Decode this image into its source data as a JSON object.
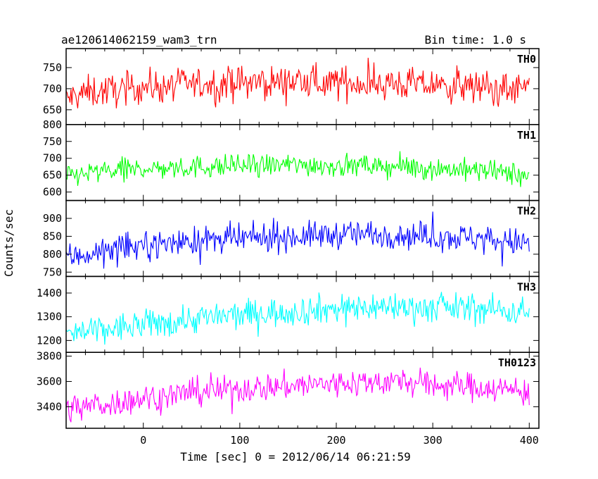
{
  "header": {
    "title": "ae120614062159_wam3_trn",
    "bin_time": "Bin time: 1.0 s"
  },
  "chart_data": {
    "type": "line",
    "title": "ae120614062159_wam3_trn",
    "xlabel": "Time [sec] 0 = 2012/06/14 06:21:59",
    "ylabel": "Counts/sec",
    "xlim": [
      -80,
      410
    ],
    "xticks": [
      0,
      100,
      200,
      300,
      400
    ],
    "series_color_notes": "stacked panels share x axis",
    "panels": [
      {
        "name": "TH0",
        "color": "#ff0000",
        "ylim": [
          615,
          795
        ],
        "yticks": [
          650,
          700,
          750
        ],
        "x": [
          -80,
          -60,
          -40,
          -20,
          0,
          20,
          40,
          60,
          80,
          100,
          120,
          140,
          160,
          180,
          200,
          220,
          240,
          260,
          280,
          300,
          320,
          340,
          360,
          380,
          400
        ],
        "y": [
          675,
          690,
          695,
          698,
          705,
          705,
          710,
          712,
          712,
          715,
          714,
          716,
          716,
          715,
          714,
          714,
          712,
          712,
          710,
          708,
          705,
          704,
          700,
          698,
          700
        ],
        "noise": 28
      },
      {
        "name": "TH1",
        "color": "#00ff00",
        "ylim": [
          575,
          800
        ],
        "yticks": [
          600,
          650,
          700,
          750,
          800
        ],
        "x": [
          -80,
          -60,
          -40,
          -20,
          0,
          20,
          40,
          60,
          80,
          100,
          120,
          140,
          160,
          180,
          200,
          220,
          240,
          260,
          280,
          300,
          320,
          340,
          360,
          380,
          400
        ],
        "y": [
          648,
          655,
          660,
          665,
          670,
          670,
          672,
          675,
          675,
          678,
          678,
          680,
          680,
          680,
          678,
          678,
          676,
          675,
          672,
          670,
          668,
          665,
          660,
          655,
          650
        ],
        "noise": 24
      },
      {
        "name": "TH2",
        "color": "#0000ff",
        "ylim": [
          738,
          950
        ],
        "yticks": [
          750,
          800,
          850,
          900
        ],
        "x": [
          -80,
          -60,
          -40,
          -20,
          0,
          20,
          40,
          60,
          80,
          100,
          120,
          140,
          160,
          180,
          200,
          220,
          240,
          260,
          280,
          300,
          320,
          340,
          360,
          380,
          400
        ],
        "y": [
          790,
          800,
          808,
          815,
          825,
          830,
          835,
          838,
          840,
          842,
          845,
          848,
          850,
          852,
          855,
          856,
          857,
          856,
          852,
          850,
          848,
          846,
          842,
          835,
          830
        ],
        "noise": 28
      },
      {
        "name": "TH3",
        "color": "#00ffff",
        "ylim": [
          1150,
          1470
        ],
        "yticks": [
          1200,
          1300,
          1400
        ],
        "x": [
          -80,
          -60,
          -40,
          -20,
          0,
          20,
          40,
          60,
          80,
          100,
          120,
          140,
          160,
          180,
          200,
          220,
          240,
          260,
          280,
          300,
          320,
          340,
          360,
          380,
          400
        ],
        "y": [
          1225,
          1235,
          1245,
          1255,
          1265,
          1275,
          1285,
          1295,
          1300,
          1308,
          1315,
          1320,
          1325,
          1330,
          1335,
          1340,
          1342,
          1342,
          1340,
          1338,
          1338,
          1336,
          1332,
          1325,
          1320
        ],
        "noise": 45
      },
      {
        "name": "TH0123",
        "color": "#ff00ff",
        "ylim": [
          3230,
          3830
        ],
        "yticks": [
          3400,
          3600,
          3800
        ],
        "x": [
          -80,
          -60,
          -40,
          -20,
          0,
          20,
          40,
          60,
          80,
          100,
          120,
          140,
          160,
          180,
          200,
          220,
          240,
          260,
          280,
          300,
          320,
          340,
          360,
          380,
          400
        ],
        "y": [
          3380,
          3400,
          3420,
          3440,
          3470,
          3480,
          3500,
          3520,
          3530,
          3540,
          3550,
          3560,
          3570,
          3575,
          3585,
          3590,
          3600,
          3600,
          3590,
          3575,
          3570,
          3560,
          3550,
          3530,
          3510
        ],
        "noise": 80
      }
    ],
    "grid": false,
    "legend": "panel labels at top-right"
  }
}
